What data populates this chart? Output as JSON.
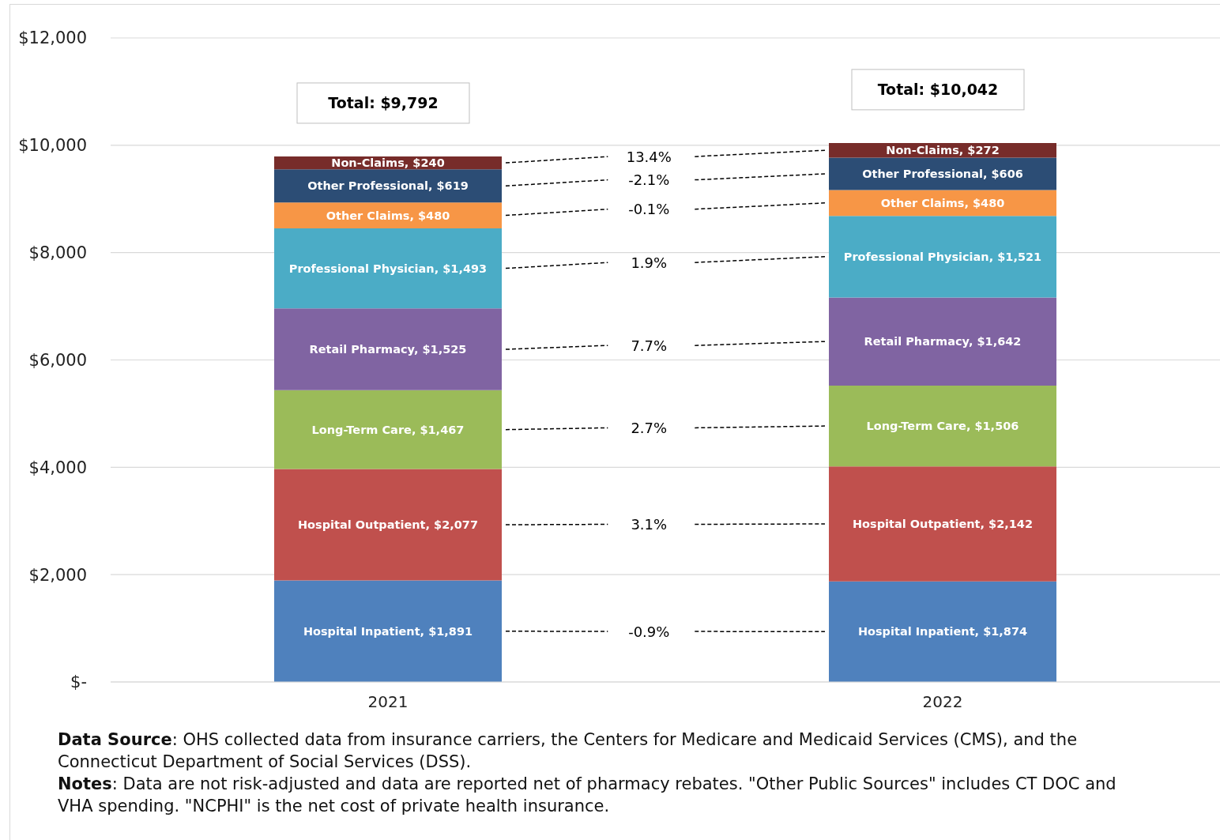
{
  "chart_data": {
    "type": "bar",
    "stacked": true,
    "categories": [
      "2021",
      "2022"
    ],
    "series": [
      {
        "name": "Hospital Inpatient,",
        "color": "#4f81bd",
        "values": [
          1891,
          1874
        ],
        "value_labels": [
          "$1,891",
          "$1,874"
        ]
      },
      {
        "name": "Hospital Outpatient,",
        "color": "#c0504d",
        "values": [
          2077,
          2142
        ],
        "value_labels": [
          "$2,077",
          "$2,142"
        ]
      },
      {
        "name": "Long-Term Care,",
        "color": "#9bbb59",
        "values": [
          1467,
          1506
        ],
        "value_labels": [
          "$1,467",
          "$1,506"
        ]
      },
      {
        "name": "Retail Pharmacy,",
        "color": "#8064a2",
        "values": [
          1525,
          1642
        ],
        "value_labels": [
          "$1,525",
          "$1,642"
        ]
      },
      {
        "name": "Professional Physician,",
        "color": "#4bacc6",
        "values": [
          1493,
          1521
        ],
        "value_labels": [
          "$1,493",
          "$1,521"
        ]
      },
      {
        "name": "Other Claims,",
        "color": "#f79646",
        "values": [
          480,
          480
        ],
        "value_labels": [
          "$480",
          "$480"
        ]
      },
      {
        "name": "Other Professional,",
        "color": "#2c4d75",
        "values": [
          619,
          606
        ],
        "value_labels": [
          "$619",
          "$606"
        ]
      },
      {
        "name": "Non-Claims,",
        "color": "#772c2a",
        "values": [
          240,
          272
        ],
        "value_labels": [
          "$240",
          "$272"
        ]
      }
    ],
    "ylim": [
      0,
      12000
    ],
    "yticks": [
      {
        "value": 0,
        "label": "$-"
      },
      {
        "value": 2000,
        "label": "$2,000"
      },
      {
        "value": 4000,
        "label": "$4,000"
      },
      {
        "value": 6000,
        "label": "$6,000"
      },
      {
        "value": 8000,
        "label": "$8,000"
      },
      {
        "value": 10000,
        "label": "$10,000"
      },
      {
        "value": 12000,
        "label": "$12,000"
      }
    ],
    "grid": "y",
    "totals": [
      "Total: $9,792",
      "Total: $10,042"
    ],
    "annotations": [
      "-0.9%",
      "3.1%",
      "2.7%",
      "7.7%",
      "1.9%",
      "-0.1%",
      "-2.1%",
      "13.4%",
      "Data Source: OHS collected data from insurance carriers, the Centers for Medicare and Medicaid Services (CMS), and the Connecticut Department of Social Services (DSS).",
      "Notes: Data are not risk-adjusted and data are reported net of pharmacy rebates. \"Other Public Sources\" includes CT DOC and VHA spending. \"NCPHI\" is the net cost of private health insurance."
    ]
  }
}
